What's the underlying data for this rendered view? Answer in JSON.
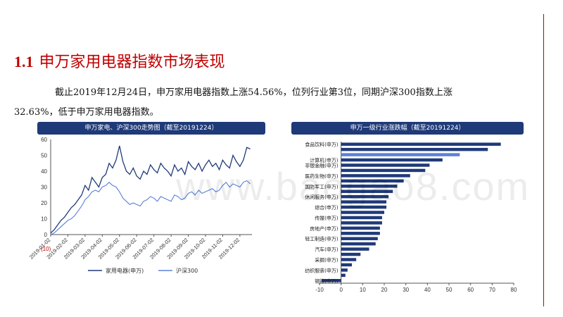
{
  "page": {
    "section_number": "1.1",
    "section_title": "申万家用电器指数市场表现",
    "paragraph_part1": "截止2019年12月24日，申万家用电器指数上涨54.56%，位列行业第3位，同期沪深300指数上涨",
    "paragraph_part2": "32.63%，低于申万家用电器指数。",
    "watermark": "www.baogao8.com",
    "colors": {
      "title": "#c00000",
      "banner": "#1f3a78",
      "series_main": "#1f3a78",
      "series_benchmark": "#5b80d8",
      "bar": "#1f3a78",
      "bar_highlight": "#5b80d8"
    }
  },
  "chart_data": [
    {
      "type": "line",
      "title": "申万家电、沪深300走势图（截至20191224）",
      "x_tick_labels": [
        "2019-01-02",
        "2019-02-02",
        "2019-03-02",
        "2019-04-02",
        "2019-05-02",
        "2019-06-02",
        "2019-07-02",
        "2019-08-02",
        "2019-09-02",
        "2019-10-02",
        "2019-11-02",
        "2019-12-02"
      ],
      "first_tick_highlight": "(10)",
      "x_range": [
        0,
        11.7
      ],
      "ylim": [
        0,
        60
      ],
      "y_ticks": [
        0,
        10,
        20,
        30,
        40,
        50,
        60
      ],
      "series": [
        {
          "name": "家用电器(申万)",
          "x": [
            0,
            0.2,
            0.4,
            0.6,
            0.8,
            1.0,
            1.2,
            1.4,
            1.6,
            1.8,
            2.0,
            2.2,
            2.4,
            2.6,
            2.8,
            3.0,
            3.2,
            3.4,
            3.6,
            3.8,
            4.0,
            4.2,
            4.4,
            4.6,
            4.8,
            5.0,
            5.2,
            5.4,
            5.6,
            5.8,
            6.0,
            6.2,
            6.4,
            6.6,
            6.8,
            7.0,
            7.2,
            7.4,
            7.6,
            7.8,
            8.0,
            8.2,
            8.4,
            8.6,
            8.8,
            9.0,
            9.2,
            9.4,
            9.6,
            9.8,
            10.0,
            10.2,
            10.4,
            10.6,
            10.8,
            11.0,
            11.2,
            11.4,
            11.6
          ],
          "y": [
            1,
            3,
            6,
            9,
            11,
            14,
            17,
            19,
            22,
            25,
            31,
            28,
            36,
            33,
            30,
            36,
            38,
            45,
            42,
            47,
            56,
            46,
            40,
            38,
            42,
            37,
            35,
            40,
            38,
            44,
            41,
            39,
            45,
            42,
            40,
            37,
            44,
            40,
            42,
            38,
            46,
            43,
            41,
            45,
            40,
            44,
            47,
            43,
            45,
            41,
            47,
            44,
            42,
            50,
            46,
            43,
            47,
            55,
            54
          ]
        },
        {
          "name": "沪深300",
          "x": [
            0,
            0.2,
            0.4,
            0.6,
            0.8,
            1.0,
            1.2,
            1.4,
            1.6,
            1.8,
            2.0,
            2.2,
            2.4,
            2.6,
            2.8,
            3.0,
            3.2,
            3.4,
            3.6,
            3.8,
            4.0,
            4.2,
            4.4,
            4.6,
            4.8,
            5.0,
            5.2,
            5.4,
            5.6,
            5.8,
            6.0,
            6.2,
            6.4,
            6.6,
            6.8,
            7.0,
            7.2,
            7.4,
            7.6,
            7.8,
            8.0,
            8.2,
            8.4,
            8.6,
            8.8,
            9.0,
            9.2,
            9.4,
            9.6,
            9.8,
            10.0,
            10.2,
            10.4,
            10.6,
            10.8,
            11.0,
            11.2,
            11.4,
            11.6
          ],
          "y": [
            0,
            1,
            3,
            5,
            7,
            9,
            10,
            12,
            15,
            18,
            22,
            24,
            27,
            28,
            27,
            30,
            31,
            33,
            31,
            30,
            27,
            23,
            21,
            19,
            20,
            19,
            18,
            21,
            22,
            24,
            23,
            21,
            24,
            23,
            22,
            21,
            25,
            24,
            22,
            23,
            26,
            27,
            25,
            28,
            26,
            27,
            28,
            29,
            27,
            28,
            31,
            33,
            30,
            32,
            31,
            30,
            33,
            34,
            32
          ]
        }
      ],
      "legend": [
        "家用电器(申万)",
        "沪深300"
      ]
    },
    {
      "type": "bar",
      "orientation": "horizontal",
      "title": "申万一级行业涨跌幅（截至20191224）",
      "categories": [
        "食品饮料(申万)",
        "",
        "",
        "计算机(申万)",
        "非银金融(申万)",
        "",
        "医药生物(申万)",
        "",
        "国防军工(申万)",
        "",
        "休闲服务(申万)",
        "",
        "综合(申万)",
        "",
        "传媒(申万)",
        "",
        "房地产(申万)",
        "",
        "轻工制造(申万)",
        "",
        "汽车(申万)",
        "",
        "采掘(申万)",
        "",
        "纺织服装(申万)",
        "",
        "钢铁(申万)"
      ],
      "values": [
        74,
        68,
        55,
        47,
        41,
        39,
        32,
        29,
        26,
        24,
        22,
        21,
        21,
        20,
        19,
        19,
        18,
        18,
        17,
        16,
        13,
        9,
        7,
        5,
        3,
        2,
        -9
      ],
      "highlight_index": 2,
      "xlim": [
        -10,
        80
      ],
      "x_ticks": [
        -10,
        0,
        10,
        20,
        30,
        40,
        50,
        60,
        70,
        80
      ]
    }
  ]
}
